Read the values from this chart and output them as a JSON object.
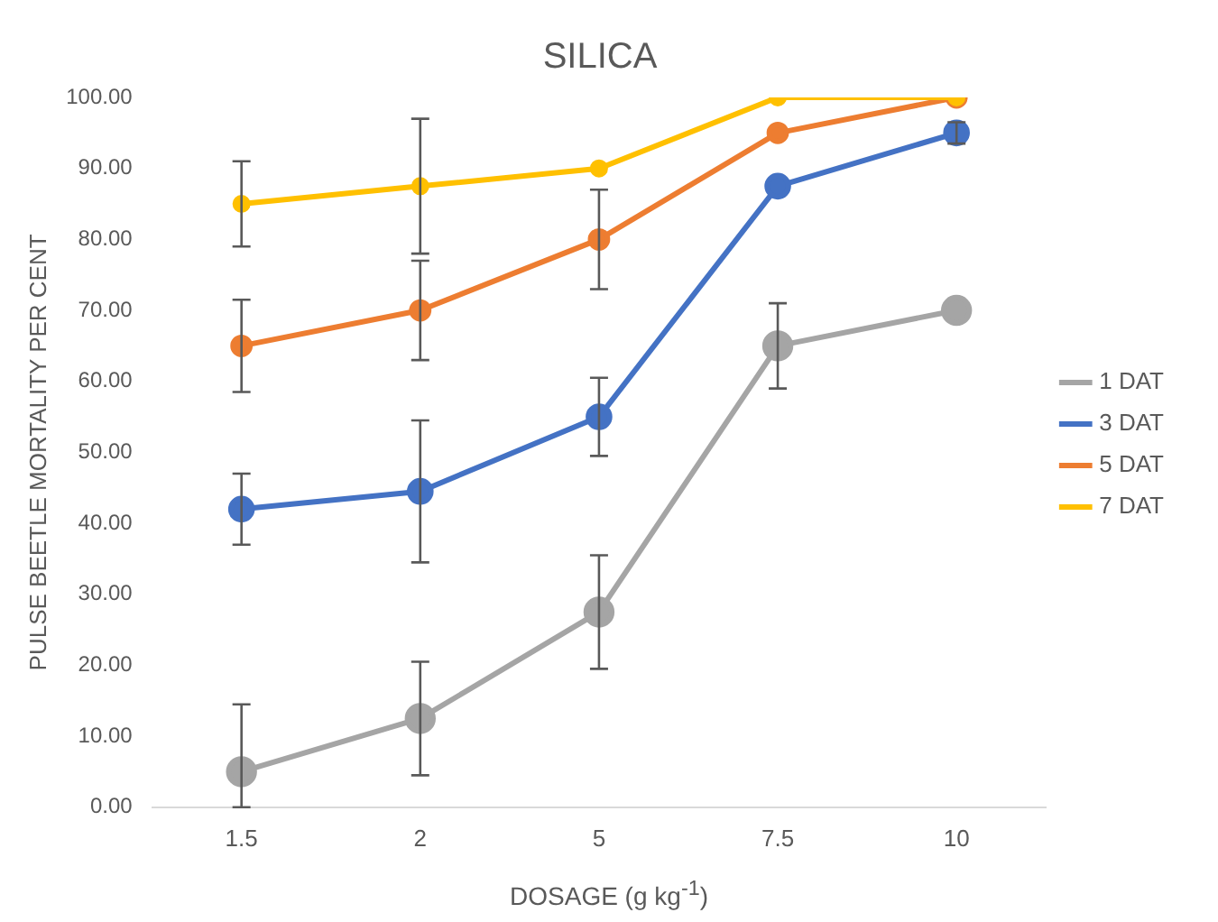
{
  "chart_data": {
    "type": "line",
    "title": "SILICA",
    "xlabel": "DOSAGE (g kg$^{-1}$)",
    "ylabel": "PULSE BEETLE MORTALITY PER CENT",
    "categories": [
      "1.5",
      "2",
      "5",
      "7.5",
      "10"
    ],
    "series": [
      {
        "name": "1 DAT",
        "color": "#a5a5a5",
        "values": [
          5,
          12.5,
          27.5,
          65,
          70
        ],
        "errors": [
          [
            0,
            14.5
          ],
          8,
          8,
          6,
          null
        ]
      },
      {
        "name": "3 DAT",
        "color": "#4472c4",
        "values": [
          42,
          44.5,
          55,
          87.5,
          95
        ],
        "errors": [
          5,
          10,
          5.5,
          null,
          1.5
        ]
      },
      {
        "name": "5 DAT",
        "color": "#ed7d31",
        "values": [
          65,
          70,
          80,
          95,
          100
        ],
        "errors": [
          6.5,
          7,
          7,
          null,
          null
        ]
      },
      {
        "name": "7 DAT",
        "color": "#ffc000",
        "values": [
          85,
          87.5,
          90,
          100,
          100
        ],
        "errors": [
          6,
          9.5,
          null,
          null,
          null
        ]
      }
    ],
    "ylim": [
      0,
      100
    ],
    "yticks": [
      {
        "value": 0,
        "label": "0.00"
      },
      {
        "value": 10,
        "label": "10.00"
      },
      {
        "value": 20,
        "label": "20.00"
      },
      {
        "value": 30,
        "label": "30.00"
      },
      {
        "value": 40,
        "label": "40.00"
      },
      {
        "value": 50,
        "label": "50.00"
      },
      {
        "value": 60,
        "label": "60.00"
      },
      {
        "value": 70,
        "label": "70.00"
      },
      {
        "value": 80,
        "label": "80.00"
      },
      {
        "value": 90,
        "label": "90.00"
      },
      {
        "value": 100,
        "label": "100.00"
      }
    ],
    "grid": false,
    "legend": "right",
    "marker": "circle",
    "line_style": "solid"
  }
}
